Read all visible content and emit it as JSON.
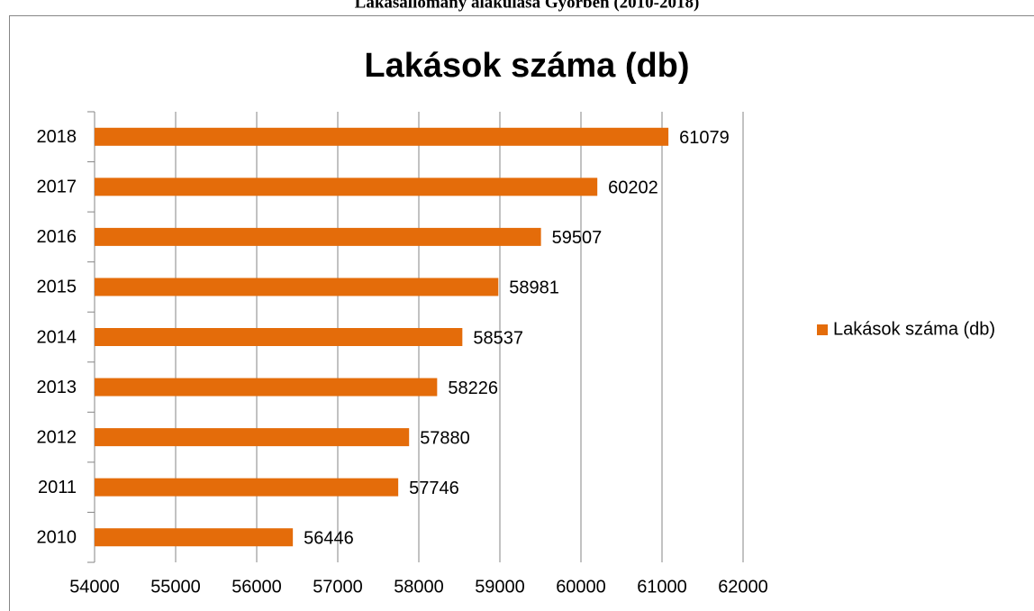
{
  "caption": "Lakásállomány alakulása Győrben (2010-2018)",
  "chart_data": {
    "type": "bar",
    "orientation": "horizontal",
    "title": "Lakások száma (db)",
    "categories": [
      "2010",
      "2011",
      "2012",
      "2013",
      "2014",
      "2015",
      "2016",
      "2017",
      "2018"
    ],
    "series": [
      {
        "name": "Lakások száma (db)",
        "color": "#e46c0a",
        "values": [
          56446,
          57746,
          57880,
          58226,
          58537,
          58981,
          59507,
          60202,
          61079
        ]
      }
    ],
    "xlim": [
      54000,
      62000
    ],
    "xticks": [
      54000,
      55000,
      56000,
      57000,
      58000,
      59000,
      60000,
      61000,
      62000
    ],
    "grid": true,
    "legend": "right",
    "data_labels": true
  }
}
